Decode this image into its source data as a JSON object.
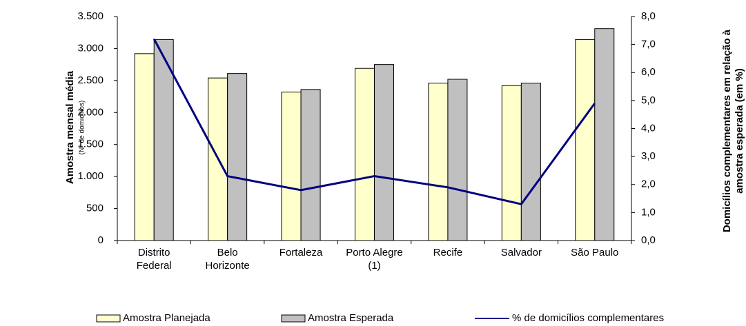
{
  "chart_data": {
    "type": "bar",
    "categories": [
      "Distrito\nFederal",
      "Belo\nHorizonte",
      "Fortaleza",
      "Porto Alegre\n(1)",
      "Recife",
      "Salvador",
      "São Paulo"
    ],
    "series": [
      {
        "name": "Amostra Planejada",
        "color": "#ffffcc",
        "values": [
          2920,
          2540,
          2320,
          2690,
          2460,
          2420,
          3140
        ]
      },
      {
        "name": "Amostra Esperada",
        "color": "#c0c0c0",
        "values": [
          3140,
          2610,
          2360,
          2750,
          2520,
          2460,
          3310
        ]
      },
      {
        "name": "% de domicílios complementares",
        "color": "#000080",
        "type": "line",
        "axis": "y2",
        "values": [
          7.2,
          2.3,
          1.8,
          2.3,
          1.9,
          1.3,
          4.9
        ]
      }
    ],
    "ylabel": "Amostra mensal média",
    "ylabel_note": "(Nº de domicílios)",
    "y2label": "Domicílios complementares em relação à\namostra esperada (em %)",
    "ylim": [
      0,
      3500
    ],
    "yticks": [
      0,
      500,
      {
        "value": 1000,
        "label": "1.000"
      },
      {
        "value": 1500,
        "label": "1.500"
      },
      {
        "value": 2000,
        "label": "2.000"
      },
      {
        "value": 2500,
        "label": "2.500"
      },
      {
        "value": 3000,
        "label": "3.000"
      },
      {
        "value": 3500,
        "label": "3.500"
      }
    ],
    "y2lim": [
      0,
      8
    ],
    "y2ticks": [
      {
        "value": 0,
        "label": "0,0"
      },
      {
        "value": 1,
        "label": "1,0"
      },
      {
        "value": 2,
        "label": "2,0"
      },
      {
        "value": 3,
        "label": "3,0"
      },
      {
        "value": 4,
        "label": "4,0"
      },
      {
        "value": 5,
        "label": "5,0"
      },
      {
        "value": 6,
        "label": "6,0"
      },
      {
        "value": 7,
        "label": "7,0"
      },
      {
        "value": 8,
        "label": "8,0"
      }
    ],
    "legend": "bottom"
  }
}
